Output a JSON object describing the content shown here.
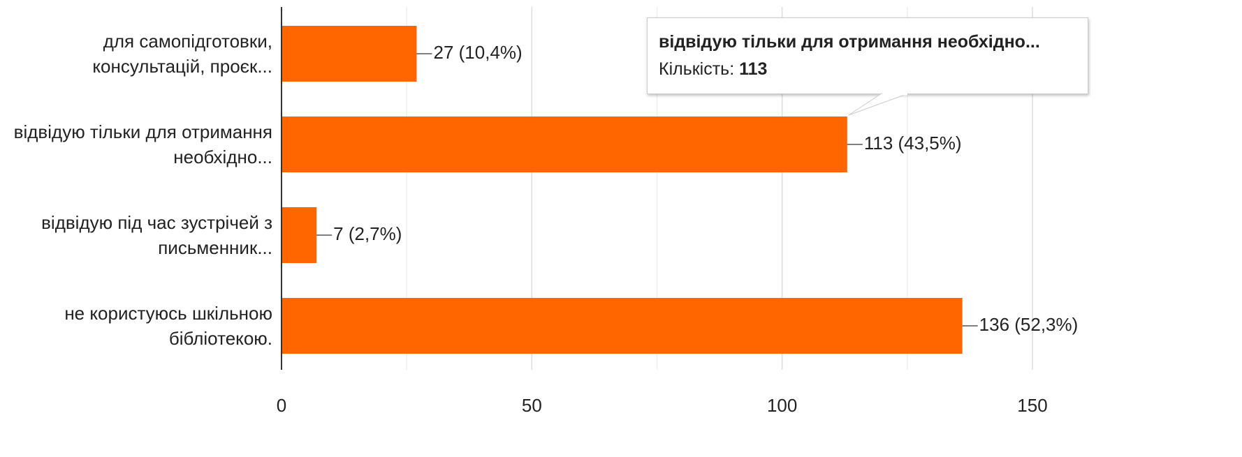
{
  "chart_data": {
    "type": "hbar",
    "categories": [
      "для самопідготовки,\nконсультацій, проєк...",
      "відвідую тільки для отримання\nнеобхідно...",
      "відвідую під час зустрічей з\nписьменник...",
      "не користуюсь шкільною\nбібліотекою."
    ],
    "values": [
      27,
      113,
      7,
      136
    ],
    "value_labels": [
      "27 (10,4%)",
      "113 (43,5%)",
      "7 (2,7%)",
      "136 (52,3%)"
    ],
    "color": "#ff6600",
    "xlim": [
      0,
      150
    ],
    "xticks": [
      0,
      50,
      100,
      150
    ],
    "minor_xticks": [
      25,
      75,
      125
    ],
    "grid": true,
    "tooltip": {
      "title": "відвідую тільки для отримання необхідно...",
      "label": "Кількість:",
      "value": "113"
    }
  }
}
